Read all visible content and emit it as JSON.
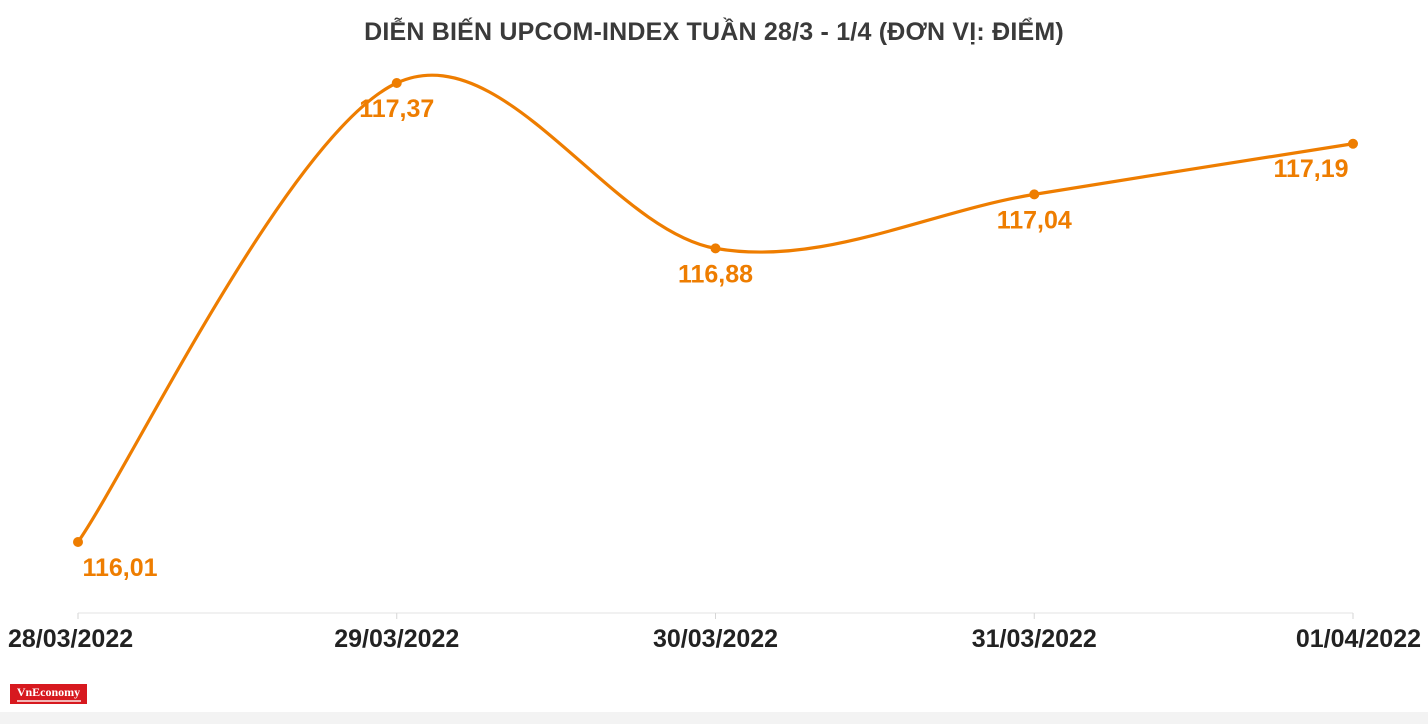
{
  "chart_data": {
    "type": "line",
    "title": "DIỄN BIẾN UPCOM-INDEX TUẦN 28/3 - 1/4 (ĐƠN VỊ: ĐIỂM)",
    "categories": [
      "28/03/2022",
      "29/03/2022",
      "30/03/2022",
      "31/03/2022",
      "01/04/2022"
    ],
    "series": [
      {
        "values": [
          116.01,
          117.37,
          116.88,
          117.04,
          117.19
        ]
      }
    ],
    "data_labels": [
      "116,01",
      "117,37",
      "116,88",
      "117,04",
      "117,19"
    ],
    "ylim": [
      116.01,
      117.37
    ],
    "grid": false,
    "legend": "none",
    "line_color": "#ee7d00",
    "label_color": "#ee7d00"
  },
  "logo": {
    "name": "VnEconomy"
  }
}
